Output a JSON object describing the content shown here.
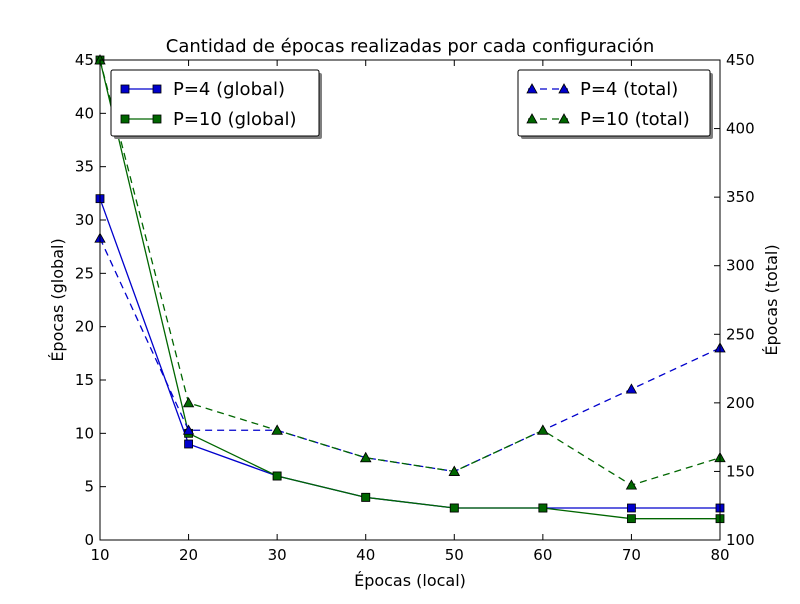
{
  "chart_data": {
    "type": "line",
    "title": "Cantidad de épocas realizadas por cada configuración",
    "xlabel": "Épocas (local)",
    "ylabel_left": "Épocas (global)",
    "ylabel_right": "Épocas (total)",
    "x": [
      10,
      20,
      30,
      40,
      50,
      60,
      70,
      80
    ],
    "xlim": [
      10,
      80
    ],
    "ylim_left": [
      0,
      45
    ],
    "ylim_right": [
      100,
      450
    ],
    "xticks": [
      "10",
      "20",
      "30",
      "40",
      "50",
      "60",
      "70",
      "80"
    ],
    "yticks_left": [
      "0",
      "5",
      "10",
      "15",
      "20",
      "25",
      "30",
      "35",
      "40",
      "45"
    ],
    "yticks_right": [
      "100",
      "150",
      "200",
      "250",
      "300",
      "350",
      "400",
      "450"
    ],
    "grid": false,
    "series": [
      {
        "name": "P=4 (global)",
        "axis": "left",
        "color": "#0000cc",
        "marker": "square",
        "dashed": false,
        "values": [
          32,
          9,
          6,
          4,
          3,
          3,
          3,
          3
        ]
      },
      {
        "name": "P=10 (global)",
        "axis": "left",
        "color": "#006600",
        "marker": "square",
        "dashed": false,
        "values": [
          45,
          10,
          6,
          4,
          3,
          3,
          2,
          2
        ]
      },
      {
        "name": "P=4 (total)",
        "axis": "right",
        "color": "#0000cc",
        "marker": "triangle",
        "dashed": true,
        "values": [
          320,
          180,
          180,
          160,
          150,
          180,
          210,
          240
        ]
      },
      {
        "name": "P=10 (total)",
        "axis": "right",
        "color": "#006600",
        "marker": "triangle",
        "dashed": true,
        "values": [
          450,
          200,
          180,
          160,
          150,
          180,
          140,
          160
        ]
      }
    ],
    "legend_left_placement": "top-left",
    "legend_right_placement": "top-right"
  }
}
